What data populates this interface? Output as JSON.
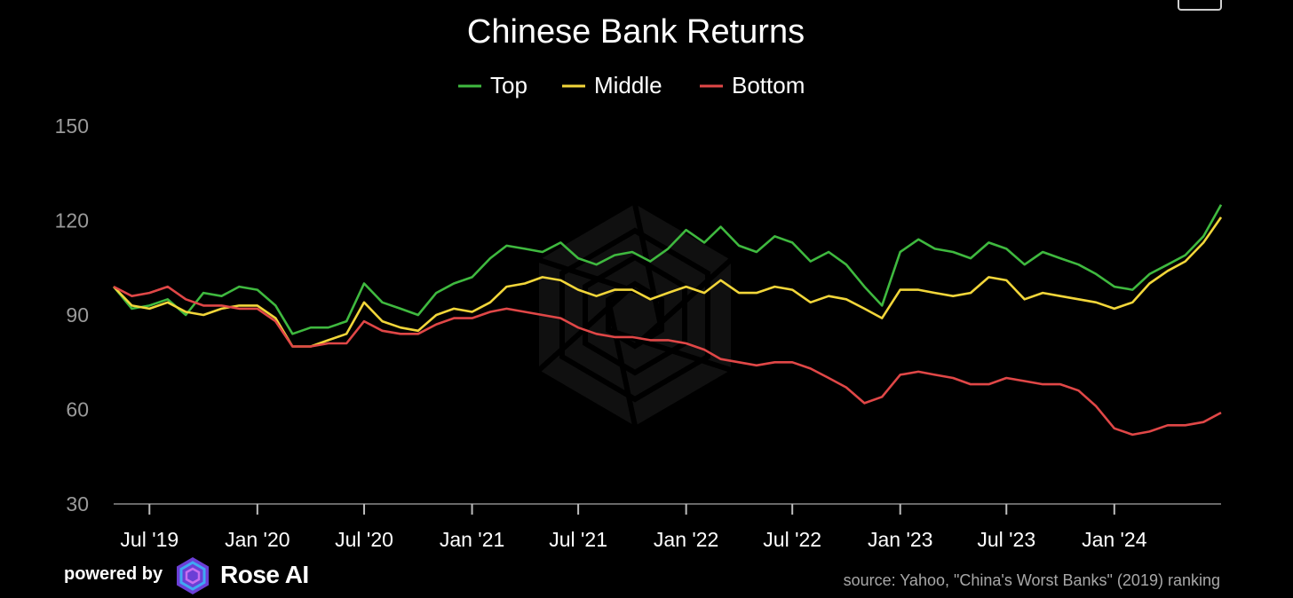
{
  "chart_data": {
    "type": "line",
    "title": "Chinese Bank Returns",
    "xlabel": "",
    "ylabel": "",
    "ylim": [
      30,
      150
    ],
    "yticks": [
      30,
      60,
      90,
      120,
      150
    ],
    "xlim": [
      "2019-05-01",
      "2024-07-01"
    ],
    "xticks": [
      {
        "date": "2019-07-01",
        "label": "Jul '19"
      },
      {
        "date": "2020-01-01",
        "label": "Jan '20"
      },
      {
        "date": "2020-07-01",
        "label": "Jul '20"
      },
      {
        "date": "2021-01-01",
        "label": "Jan '21"
      },
      {
        "date": "2021-07-01",
        "label": "Jul '21"
      },
      {
        "date": "2022-01-01",
        "label": "Jan '22"
      },
      {
        "date": "2022-07-01",
        "label": "Jul '22"
      },
      {
        "date": "2023-01-01",
        "label": "Jan '23"
      },
      {
        "date": "2023-07-01",
        "label": "Jul '23"
      },
      {
        "date": "2024-01-01",
        "label": "Jan '24"
      }
    ],
    "grid": false,
    "legend_position": "top-center",
    "x": [
      "2019-05-01",
      "2019-06-01",
      "2019-07-01",
      "2019-08-01",
      "2019-09-01",
      "2019-10-01",
      "2019-11-01",
      "2019-12-01",
      "2020-01-01",
      "2020-02-01",
      "2020-03-01",
      "2020-04-01",
      "2020-05-01",
      "2020-06-01",
      "2020-07-01",
      "2020-08-01",
      "2020-09-01",
      "2020-10-01",
      "2020-11-01",
      "2020-12-01",
      "2021-01-01",
      "2021-02-01",
      "2021-03-01",
      "2021-04-01",
      "2021-05-01",
      "2021-06-01",
      "2021-07-01",
      "2021-08-01",
      "2021-09-01",
      "2021-10-01",
      "2021-11-01",
      "2021-12-01",
      "2022-01-01",
      "2022-02-01",
      "2022-03-01",
      "2022-04-01",
      "2022-05-01",
      "2022-06-01",
      "2022-07-01",
      "2022-08-01",
      "2022-09-01",
      "2022-10-01",
      "2022-11-01",
      "2022-12-01",
      "2023-01-01",
      "2023-02-01",
      "2023-03-01",
      "2023-04-01",
      "2023-05-01",
      "2023-06-01",
      "2023-07-01",
      "2023-08-01",
      "2023-09-01",
      "2023-10-01",
      "2023-11-01",
      "2023-12-01",
      "2024-01-01",
      "2024-02-01",
      "2024-03-01",
      "2024-04-01",
      "2024-05-01",
      "2024-06-01",
      "2024-07-01"
    ],
    "series": [
      {
        "name": "Top",
        "color": "#3fb93f",
        "values": [
          99,
          92,
          93,
          95,
          90,
          97,
          96,
          99,
          98,
          93,
          84,
          86,
          86,
          88,
          100,
          94,
          92,
          90,
          97,
          100,
          102,
          108,
          112,
          111,
          110,
          113,
          108,
          106,
          109,
          110,
          107,
          111,
          117,
          113,
          118,
          112,
          110,
          115,
          113,
          107,
          110,
          106,
          99,
          93,
          110,
          114,
          111,
          110,
          108,
          113,
          111,
          106,
          110,
          108,
          106,
          103,
          99,
          98,
          103,
          106,
          109,
          115,
          125
        ]
      },
      {
        "name": "Middle",
        "color": "#f2d63a",
        "values": [
          99,
          93,
          92,
          94,
          91,
          90,
          92,
          93,
          93,
          89,
          80,
          80,
          82,
          84,
          94,
          88,
          86,
          85,
          90,
          92,
          91,
          94,
          99,
          100,
          102,
          101,
          98,
          96,
          98,
          98,
          95,
          97,
          99,
          97,
          101,
          97,
          97,
          99,
          98,
          94,
          96,
          95,
          92,
          89,
          98,
          98,
          97,
          96,
          97,
          102,
          101,
          95,
          97,
          96,
          95,
          94,
          92,
          94,
          100,
          104,
          107,
          113,
          121
        ]
      },
      {
        "name": "Bottom",
        "color": "#e04747",
        "values": [
          99,
          96,
          97,
          99,
          95,
          93,
          93,
          92,
          92,
          88,
          80,
          80,
          81,
          81,
          88,
          85,
          84,
          84,
          87,
          89,
          89,
          91,
          92,
          91,
          90,
          89,
          86,
          84,
          83,
          83,
          82,
          82,
          81,
          79,
          76,
          75,
          74,
          75,
          75,
          73,
          70,
          67,
          62,
          64,
          71,
          72,
          71,
          70,
          68,
          68,
          70,
          69,
          68,
          68,
          66,
          61,
          54,
          52,
          53,
          55,
          55,
          56,
          59
        ]
      }
    ]
  },
  "footer": {
    "powered_by": "powered by",
    "brand": "Rose AI",
    "source": "source: Yahoo, \"China's Worst Banks\" (2019) ranking"
  },
  "icons": {
    "watermark": "rose-ai-watermark-icon",
    "brand_logo": "rose-ai-logo-icon",
    "corner": "menu-button-icon"
  }
}
